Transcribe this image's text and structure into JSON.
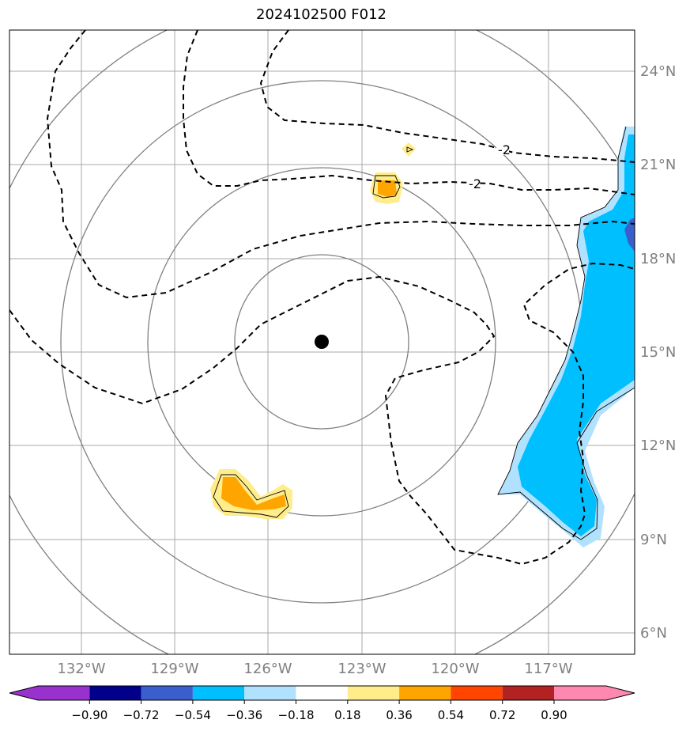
{
  "title": "2024102500 F012",
  "lat_labels": [
    "24°N",
    "21°N",
    "18°N",
    "15°N",
    "12°N",
    "9°N",
    "6°N"
  ],
  "lon_labels": [
    "132°W",
    "129°W",
    "126°W",
    "123°W",
    "120°W",
    "117°W"
  ],
  "contour_labels": [
    "-2",
    "-2"
  ],
  "colorbar": {
    "ticks": [
      "−0.90",
      "−0.72",
      "−0.54",
      "−0.36",
      "−0.18",
      "0.18",
      "0.36",
      "0.54",
      "0.72",
      "0.90"
    ],
    "colors": [
      "#9932cc",
      "#00008b",
      "#3a5fcd",
      "#00bfff",
      "#b0e2ff",
      "#ffffff",
      "#ffec8b",
      "#ffa500",
      "#ff4500",
      "#b22222",
      "#ff88b0"
    ]
  },
  "colors": {
    "grid": "#a9a9a9",
    "rings": "#808080",
    "contour": "#000000",
    "center_marker": "#000000"
  }
}
